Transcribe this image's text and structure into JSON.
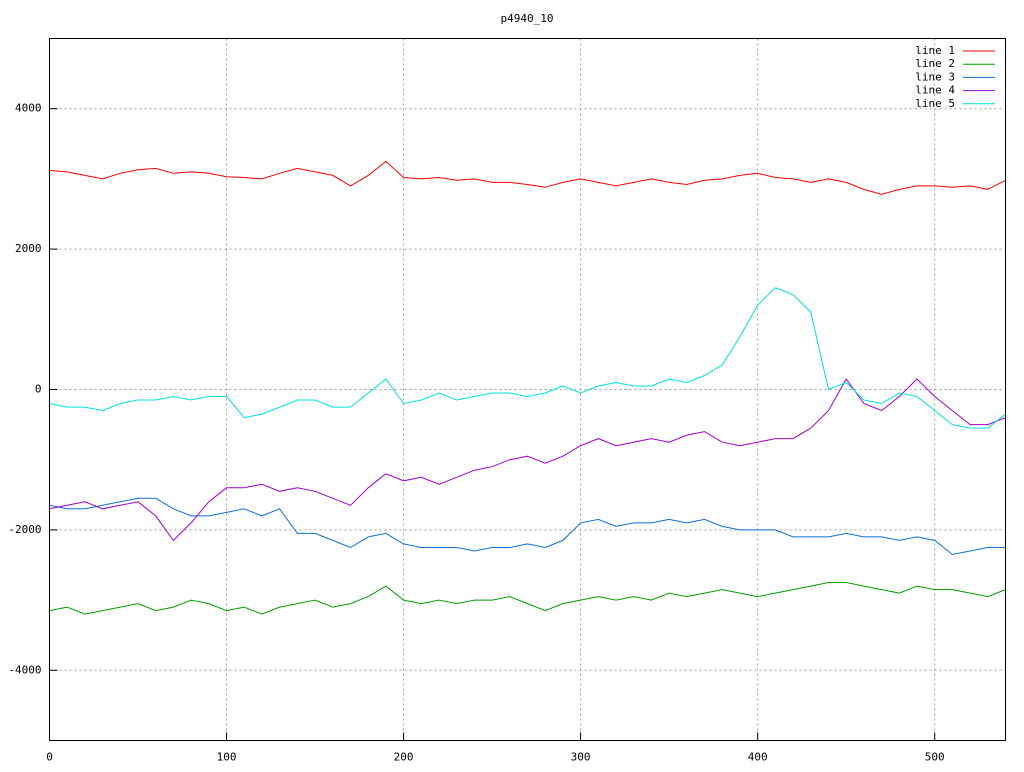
{
  "chart_data": {
    "type": "line",
    "title": "p4940_10",
    "x": [
      0,
      10,
      20,
      30,
      40,
      50,
      60,
      70,
      80,
      90,
      100,
      110,
      120,
      130,
      140,
      150,
      160,
      170,
      180,
      190,
      200,
      210,
      220,
      230,
      240,
      250,
      260,
      270,
      280,
      290,
      300,
      310,
      320,
      330,
      340,
      350,
      360,
      370,
      380,
      390,
      400,
      410,
      420,
      430,
      440,
      450,
      460,
      470,
      480,
      490,
      500,
      510,
      520,
      530,
      540
    ],
    "xlim": [
      0,
      540
    ],
    "xticks": [
      0,
      100,
      200,
      300,
      400,
      500
    ],
    "ylim": [
      -5000,
      5000
    ],
    "yticks": [
      -4000,
      -2000,
      0,
      2000,
      4000
    ],
    "grid": true,
    "legend": "top-right",
    "series": [
      {
        "name": "line 1",
        "color": "#ff0000",
        "values": [
          3120,
          3100,
          3050,
          3000,
          3080,
          3130,
          3150,
          3080,
          3100,
          3080,
          3030,
          3020,
          3000,
          3080,
          3150,
          3100,
          3050,
          2900,
          3050,
          3250,
          3020,
          3000,
          3020,
          2980,
          3000,
          2950,
          2950,
          2920,
          2880,
          2950,
          3000,
          2950,
          2900,
          2950,
          3000,
          2950,
          2920,
          2980,
          3000,
          3050,
          3080,
          3020,
          3000,
          2950,
          3000,
          2950,
          2850,
          2780,
          2850,
          2900,
          2900,
          2880,
          2900,
          2850,
          2980
        ]
      },
      {
        "name": "line 2",
        "color": "#00a000",
        "values": [
          -3150,
          -3100,
          -3200,
          -3150,
          -3100,
          -3050,
          -3150,
          -3100,
          -3000,
          -3050,
          -3150,
          -3100,
          -3200,
          -3100,
          -3050,
          -3000,
          -3100,
          -3050,
          -2950,
          -2800,
          -3000,
          -3050,
          -3000,
          -3050,
          -3000,
          -3000,
          -2950,
          -3050,
          -3150,
          -3050,
          -3000,
          -2950,
          -3000,
          -2950,
          -3000,
          -2900,
          -2950,
          -2900,
          -2850,
          -2900,
          -2950,
          -2900,
          -2850,
          -2800,
          -2750,
          -2750,
          -2800,
          -2850,
          -2900,
          -2800,
          -2850,
          -2850,
          -2900,
          -2950,
          -2850
        ]
      },
      {
        "name": "line 3",
        "color": "#1070d8",
        "values": [
          -1650,
          -1700,
          -1700,
          -1650,
          -1600,
          -1550,
          -1550,
          -1700,
          -1800,
          -1800,
          -1750,
          -1700,
          -1800,
          -1700,
          -2050,
          -2050,
          -2150,
          -2250,
          -2100,
          -2050,
          -2200,
          -2250,
          -2250,
          -2250,
          -2300,
          -2250,
          -2250,
          -2200,
          -2250,
          -2150,
          -1900,
          -1850,
          -1950,
          -1900,
          -1900,
          -1850,
          -1900,
          -1850,
          -1950,
          -2000,
          -2000,
          -2000,
          -2100,
          -2100,
          -2100,
          -2050,
          -2100,
          -2100,
          -2150,
          -2100,
          -2150,
          -2350,
          -2300,
          -2250,
          -2250
        ]
      },
      {
        "name": "line 4",
        "color": "#a000d0",
        "values": [
          -1700,
          -1650,
          -1600,
          -1700,
          -1650,
          -1600,
          -1800,
          -2150,
          -1900,
          -1600,
          -1400,
          -1400,
          -1350,
          -1450,
          -1400,
          -1450,
          -1550,
          -1650,
          -1400,
          -1200,
          -1300,
          -1250,
          -1350,
          -1250,
          -1150,
          -1100,
          -1000,
          -950,
          -1050,
          -950,
          -800,
          -700,
          -800,
          -750,
          -700,
          -750,
          -650,
          -600,
          -750,
          -800,
          -750,
          -700,
          -700,
          -550,
          -300,
          150,
          -200,
          -300,
          -100,
          150,
          -100,
          -300,
          -500,
          -500,
          -400
        ]
      },
      {
        "name": "line 5",
        "color": "#00e0e0",
        "values": [
          -200,
          -250,
          -250,
          -300,
          -200,
          -150,
          -150,
          -100,
          -150,
          -100,
          -100,
          -400,
          -350,
          -250,
          -150,
          -150,
          -250,
          -250,
          -50,
          150,
          -200,
          -150,
          -50,
          -150,
          -100,
          -50,
          -50,
          -100,
          -50,
          50,
          -50,
          50,
          100,
          50,
          50,
          150,
          100,
          200,
          350,
          750,
          1200,
          1450,
          1350,
          1100,
          0,
          100,
          -150,
          -200,
          -50,
          -100,
          -300,
          -500,
          -550,
          -550,
          -350
        ]
      }
    ]
  }
}
